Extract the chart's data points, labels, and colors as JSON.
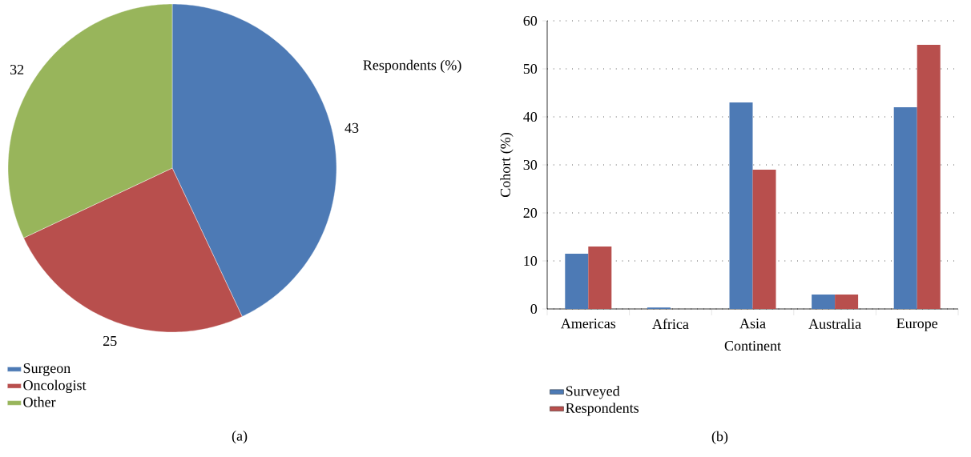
{
  "chart_data": [
    {
      "type": "pie",
      "title": "Respondents (%)",
      "categories": [
        "Surgeon",
        "Oncologist",
        "Other"
      ],
      "values": [
        43,
        25,
        32
      ],
      "colors": [
        "#4d7ab5",
        "#b84f4d",
        "#98b55b"
      ],
      "data_labels": true,
      "legend": "bottom left",
      "annotations": [
        "(a)"
      ]
    },
    {
      "type": "bar",
      "xlabel": "Continent",
      "ylabel": "Cohort (%)",
      "categories": [
        "Americas",
        "Africa",
        "Asia",
        "Australia",
        "Europe"
      ],
      "series": [
        {
          "name": "Surveyed",
          "color": "#4d7ab5",
          "values": [
            11.5,
            0.3,
            43,
            3,
            42
          ]
        },
        {
          "name": "Respondents",
          "color": "#b84f4d",
          "values": [
            13,
            0,
            29,
            3,
            55
          ]
        }
      ],
      "ylim": [
        0,
        60
      ],
      "yticks": [
        0,
        10,
        20,
        30,
        40,
        50,
        60
      ],
      "grid": "y",
      "legend": "bottom left",
      "annotations": [
        "(b)"
      ]
    }
  ]
}
